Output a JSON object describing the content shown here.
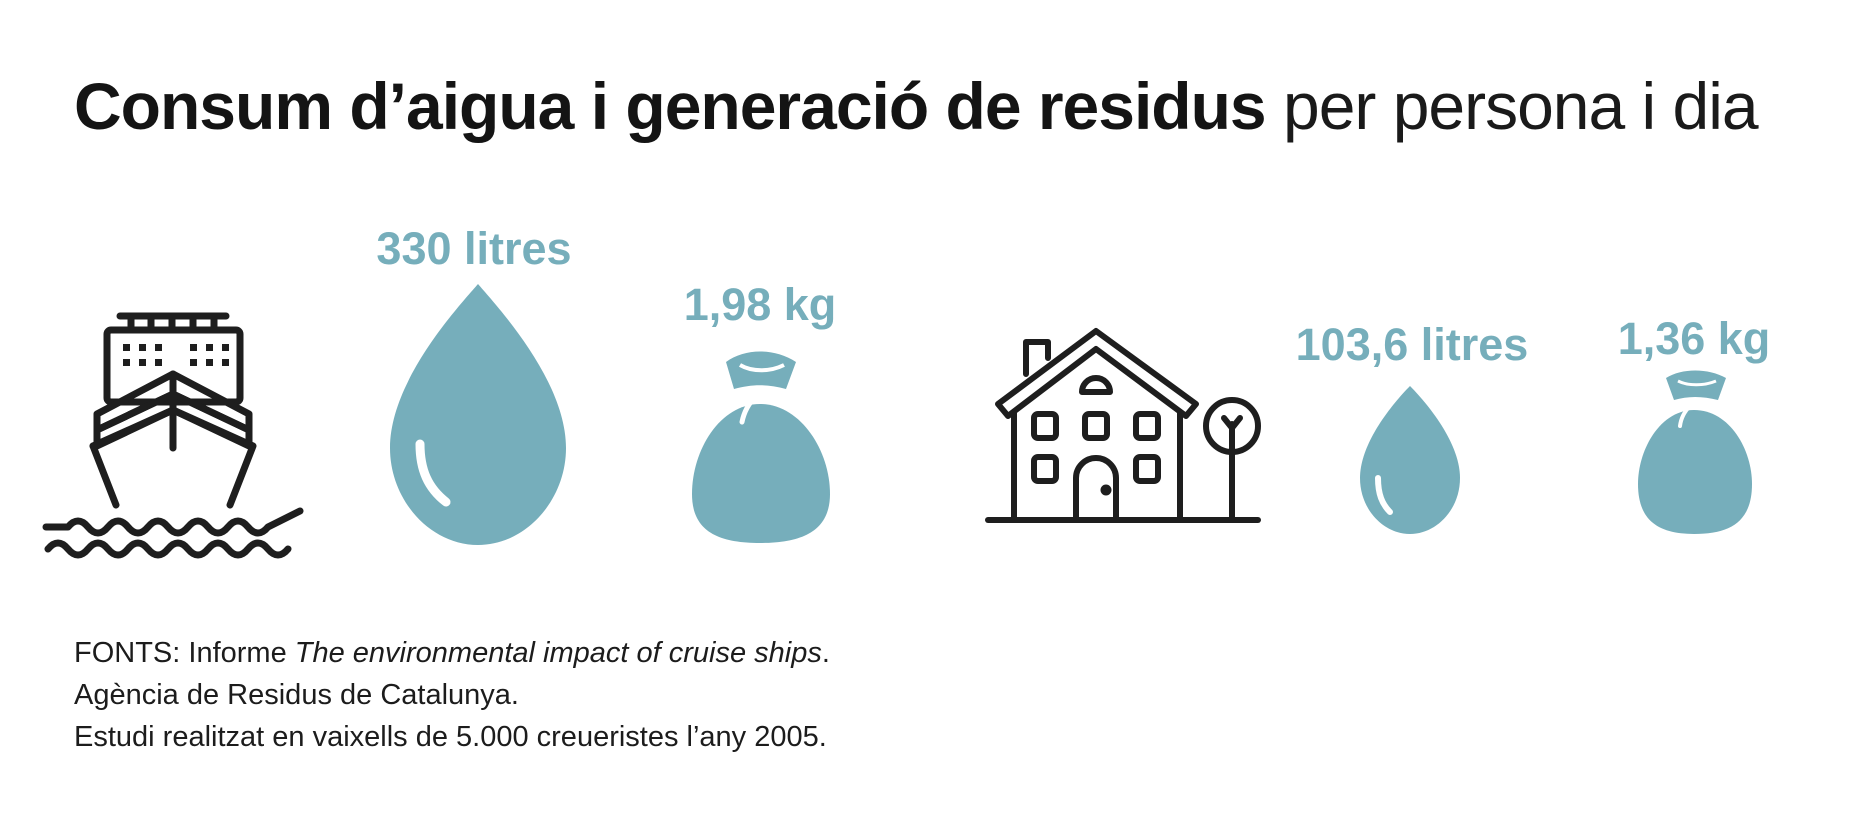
{
  "colors": {
    "accent": "#76aebb",
    "icon_stroke": "#1e1e1e",
    "text": "#141414"
  },
  "title": {
    "bold": "Consum d’aigua i generació de residus",
    "light": "per persona i dia"
  },
  "icons": {
    "ship": "cruise-ship-icon",
    "house": "house-icon",
    "drop": "water-drop-icon",
    "bag": "waste-bag-icon"
  },
  "chart_data": {
    "type": "pictogram",
    "groups": [
      {
        "icon": "cruise-ship-icon",
        "water_litres": 330,
        "waste_kg": 1.98,
        "water_label": "330 litres",
        "waste_label": "1,98 kg"
      },
      {
        "icon": "house-icon",
        "water_litres": 103.6,
        "waste_kg": 1.36,
        "water_label": "103,6 litres",
        "waste_label": "1,36 kg"
      }
    ]
  },
  "sources": {
    "line1_prefix": "FONTS: Informe ",
    "line1_italic": "The environmental impact of cruise ships",
    "line1_suffix": ".",
    "line2": "Agència de Residus de Catalunya.",
    "line3": "Estudi realitzat en vaixells de 5.000 creueristes l’any 2005."
  }
}
